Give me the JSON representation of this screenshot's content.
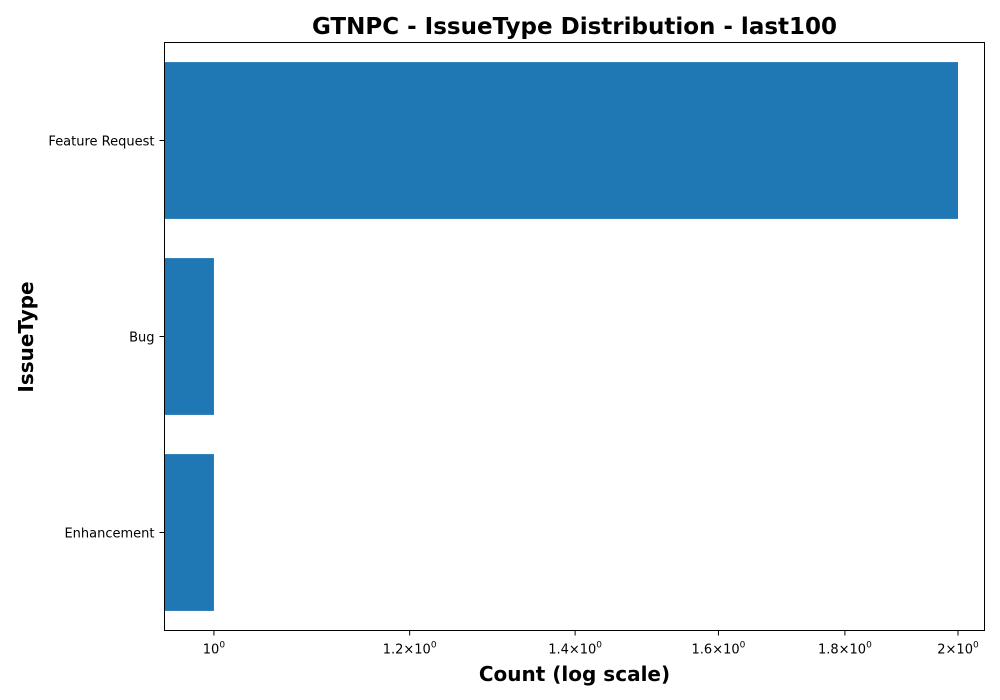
{
  "chart_data": {
    "type": "bar",
    "orientation": "horizontal",
    "title": "GTNPC - IssueType Distribution - last100",
    "xlabel": "Count (log scale)",
    "ylabel": "IssueType",
    "x_scale": "log",
    "xlim": [
      0.955,
      2.05
    ],
    "categories": [
      "Feature Request",
      "Bug",
      "Enhancement"
    ],
    "values": [
      2,
      1,
      1
    ],
    "bar_color": "#1f77b4",
    "x_ticks": [
      {
        "value": 1.0,
        "base": "10",
        "exp": "0"
      },
      {
        "value": 1.2,
        "base": "1.2×10",
        "exp": "0"
      },
      {
        "value": 1.4,
        "base": "1.4×10",
        "exp": "0"
      },
      {
        "value": 1.6,
        "base": "1.6×10",
        "exp": "0"
      },
      {
        "value": 1.8,
        "base": "1.8×10",
        "exp": "0"
      },
      {
        "value": 2.0,
        "base": "2×10",
        "exp": "0"
      }
    ],
    "grid": false,
    "legend": "none"
  }
}
